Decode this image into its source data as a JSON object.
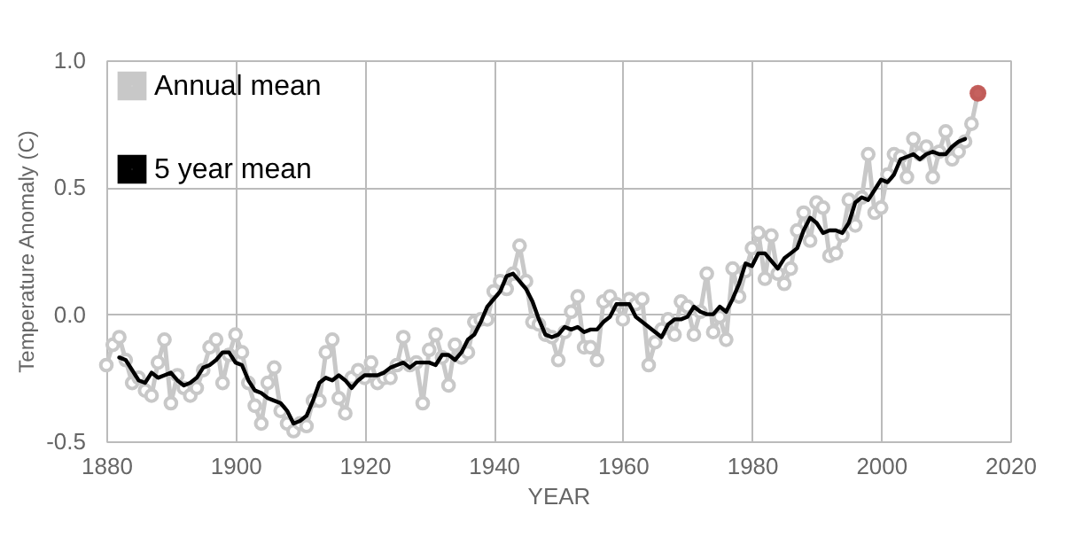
{
  "chart_data": {
    "type": "line",
    "xlabel": "YEAR",
    "ylabel": "Temperature Anomaly (C)",
    "xlim": [
      1880,
      2020
    ],
    "xticks": [
      1880,
      1900,
      1920,
      1940,
      1960,
      1980,
      2000,
      2020
    ],
    "ylim": [
      -0.5,
      1.0
    ],
    "yticks": [
      {
        "value": -0.5,
        "label": "-0.5"
      },
      {
        "value": 0,
        "label": "0.0"
      },
      {
        "value": 0.5,
        "label": "0.5"
      },
      {
        "value": 1.0,
        "label": "1.0"
      }
    ],
    "grid": true,
    "legend": "top left",
    "series": [
      {
        "name": "Annual mean",
        "color": "#c8c8c8",
        "marker": "circle",
        "x": [
          1880,
          1881,
          1882,
          1883,
          1884,
          1885,
          1886,
          1887,
          1888,
          1889,
          1890,
          1891,
          1892,
          1893,
          1894,
          1895,
          1896,
          1897,
          1898,
          1899,
          1900,
          1901,
          1902,
          1903,
          1904,
          1905,
          1906,
          1907,
          1908,
          1909,
          1910,
          1911,
          1912,
          1913,
          1914,
          1915,
          1916,
          1917,
          1918,
          1919,
          1920,
          1921,
          1922,
          1923,
          1924,
          1925,
          1926,
          1927,
          1928,
          1929,
          1930,
          1931,
          1932,
          1933,
          1934,
          1935,
          1936,
          1937,
          1938,
          1939,
          1940,
          1941,
          1942,
          1943,
          1944,
          1945,
          1946,
          1947,
          1948,
          1949,
          1950,
          1951,
          1952,
          1953,
          1954,
          1955,
          1956,
          1957,
          1958,
          1959,
          1960,
          1961,
          1962,
          1963,
          1964,
          1965,
          1966,
          1967,
          1968,
          1969,
          1970,
          1971,
          1972,
          1973,
          1974,
          1975,
          1976,
          1977,
          1978,
          1979,
          1980,
          1981,
          1982,
          1983,
          1984,
          1985,
          1986,
          1987,
          1988,
          1989,
          1990,
          1991,
          1992,
          1993,
          1994,
          1995,
          1996,
          1997,
          1998,
          1999,
          2000,
          2001,
          2002,
          2003,
          2004,
          2005,
          2006,
          2007,
          2008,
          2009,
          2010,
          2011,
          2012,
          2013,
          2014,
          2015
        ],
        "values": [
          -0.2,
          -0.12,
          -0.09,
          -0.18,
          -0.27,
          -0.25,
          -0.3,
          -0.32,
          -0.19,
          -0.1,
          -0.35,
          -0.24,
          -0.29,
          -0.32,
          -0.29,
          -0.22,
          -0.13,
          -0.1,
          -0.27,
          -0.16,
          -0.08,
          -0.15,
          -0.27,
          -0.36,
          -0.43,
          -0.27,
          -0.21,
          -0.38,
          -0.43,
          -0.46,
          -0.43,
          -0.44,
          -0.34,
          -0.34,
          -0.15,
          -0.1,
          -0.33,
          -0.39,
          -0.25,
          -0.22,
          -0.25,
          -0.19,
          -0.27,
          -0.25,
          -0.25,
          -0.2,
          -0.09,
          -0.2,
          -0.19,
          -0.35,
          -0.14,
          -0.08,
          -0.17,
          -0.28,
          -0.12,
          -0.17,
          -0.15,
          -0.03,
          -0.02,
          -0.02,
          0.09,
          0.13,
          0.1,
          0.16,
          0.27,
          0.13,
          -0.03,
          -0.04,
          -0.08,
          -0.09,
          -0.18,
          -0.07,
          0.01,
          0.07,
          -0.13,
          -0.13,
          -0.18,
          0.05,
          0.07,
          0.04,
          -0.02,
          0.06,
          0.04,
          0.06,
          -0.2,
          -0.11,
          -0.06,
          -0.02,
          -0.08,
          0.05,
          0.03,
          -0.08,
          0.01,
          0.16,
          -0.07,
          -0.01,
          -0.1,
          0.18,
          0.07,
          0.17,
          0.26,
          0.32,
          0.14,
          0.31,
          0.16,
          0.12,
          0.18,
          0.33,
          0.4,
          0.29,
          0.44,
          0.42,
          0.23,
          0.24,
          0.31,
          0.45,
          0.35,
          0.46,
          0.63,
          0.4,
          0.42,
          0.55,
          0.63,
          0.62,
          0.54,
          0.69,
          0.63,
          0.66,
          0.54,
          0.64,
          0.72,
          0.61,
          0.64,
          0.68,
          0.75,
          0.87
        ]
      },
      {
        "name": "5 year mean",
        "color": "#000000",
        "marker": "none",
        "x": [
          1882,
          1883,
          1884,
          1885,
          1886,
          1887,
          1888,
          1889,
          1890,
          1891,
          1892,
          1893,
          1894,
          1895,
          1896,
          1897,
          1898,
          1899,
          1900,
          1901,
          1902,
          1903,
          1904,
          1905,
          1906,
          1907,
          1908,
          1909,
          1910,
          1911,
          1912,
          1913,
          1914,
          1915,
          1916,
          1917,
          1918,
          1919,
          1920,
          1921,
          1922,
          1923,
          1924,
          1925,
          1926,
          1927,
          1928,
          1929,
          1930,
          1931,
          1932,
          1933,
          1934,
          1935,
          1936,
          1937,
          1938,
          1939,
          1940,
          1941,
          1942,
          1943,
          1944,
          1945,
          1946,
          1947,
          1948,
          1949,
          1950,
          1951,
          1952,
          1953,
          1954,
          1955,
          1956,
          1957,
          1958,
          1959,
          1960,
          1961,
          1962,
          1963,
          1964,
          1965,
          1966,
          1967,
          1968,
          1969,
          1970,
          1971,
          1972,
          1973,
          1974,
          1975,
          1976,
          1977,
          1978,
          1979,
          1980,
          1981,
          1982,
          1983,
          1984,
          1985,
          1986,
          1987,
          1988,
          1989,
          1990,
          1991,
          1992,
          1993,
          1994,
          1995,
          1996,
          1997,
          1998,
          1999,
          2000,
          2001,
          2002,
          2003,
          2004,
          2005,
          2006,
          2007,
          2008,
          2009,
          2010,
          2011,
          2012,
          2013
        ],
        "values": [
          -0.17,
          -0.18,
          -0.22,
          -0.26,
          -0.27,
          -0.23,
          -0.25,
          -0.24,
          -0.23,
          -0.26,
          -0.28,
          -0.27,
          -0.25,
          -0.21,
          -0.2,
          -0.18,
          -0.15,
          -0.15,
          -0.19,
          -0.2,
          -0.26,
          -0.3,
          -0.31,
          -0.33,
          -0.34,
          -0.35,
          -0.38,
          -0.43,
          -0.42,
          -0.4,
          -0.34,
          -0.27,
          -0.25,
          -0.26,
          -0.24,
          -0.26,
          -0.29,
          -0.26,
          -0.24,
          -0.24,
          -0.24,
          -0.23,
          -0.21,
          -0.2,
          -0.19,
          -0.21,
          -0.19,
          -0.19,
          -0.19,
          -0.2,
          -0.16,
          -0.16,
          -0.18,
          -0.15,
          -0.1,
          -0.08,
          -0.03,
          0.03,
          0.06,
          0.09,
          0.15,
          0.16,
          0.13,
          0.1,
          0.05,
          -0.02,
          -0.08,
          -0.09,
          -0.08,
          -0.05,
          -0.06,
          -0.05,
          -0.07,
          -0.06,
          -0.06,
          -0.03,
          -0.01,
          0.04,
          0.04,
          0.04,
          -0.01,
          -0.03,
          -0.05,
          -0.07,
          -0.09,
          -0.04,
          -0.02,
          -0.02,
          -0.01,
          0.03,
          0.01,
          0.0,
          0.0,
          0.03,
          0.01,
          0.06,
          0.12,
          0.2,
          0.19,
          0.24,
          0.24,
          0.21,
          0.18,
          0.22,
          0.24,
          0.26,
          0.33,
          0.38,
          0.36,
          0.32,
          0.33,
          0.33,
          0.32,
          0.36,
          0.44,
          0.46,
          0.45,
          0.49,
          0.53,
          0.52,
          0.55,
          0.61,
          0.62,
          0.63,
          0.61,
          0.63,
          0.64,
          0.63,
          0.63,
          0.66,
          0.68,
          0.69
        ]
      },
      {
        "type": "scatter",
        "color": "#c0504d",
        "marker": "circle",
        "x": [
          2015
        ],
        "values": [
          0.87
        ]
      }
    ]
  }
}
